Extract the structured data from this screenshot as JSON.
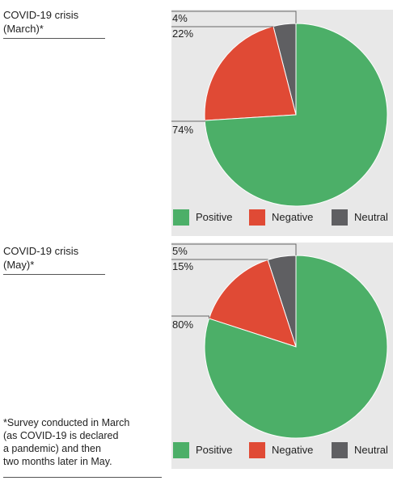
{
  "charts": [
    {
      "title_line1": "COVID-19 crisis",
      "title_line2": "(March)*",
      "labels": {
        "neutral": "4%",
        "negative": "22%",
        "positive": "74%"
      }
    },
    {
      "title_line1": "COVID-19 crisis",
      "title_line2": "(May)*",
      "labels": {
        "neutral": "5%",
        "negative": "15%",
        "positive": "80%"
      }
    }
  ],
  "legend": {
    "positive": "Positive",
    "negative": "Negative",
    "neutral": "Neutral"
  },
  "colors": {
    "positive": "#4caf68",
    "negative": "#e04a35",
    "neutral": "#5f5f62",
    "panel_bg": "#e8e8e8",
    "leader": "#666666"
  },
  "footnote": {
    "line1": "*Survey conducted in March",
    "line2": "(as COVID-19 is declared",
    "line3": "a pandemic) and then",
    "line4": "two months later in May."
  },
  "chart_data": [
    {
      "type": "pie",
      "title": "COVID-19 crisis (March)*",
      "categories": [
        "Positive",
        "Negative",
        "Neutral"
      ],
      "values": [
        74,
        22,
        4
      ],
      "colors": [
        "#4caf68",
        "#e04a35",
        "#5f5f62"
      ],
      "legend_position": "bottom"
    },
    {
      "type": "pie",
      "title": "COVID-19 crisis (May)*",
      "categories": [
        "Positive",
        "Negative",
        "Neutral"
      ],
      "values": [
        80,
        15,
        5
      ],
      "colors": [
        "#4caf68",
        "#e04a35",
        "#5f5f62"
      ],
      "legend_position": "bottom"
    }
  ]
}
